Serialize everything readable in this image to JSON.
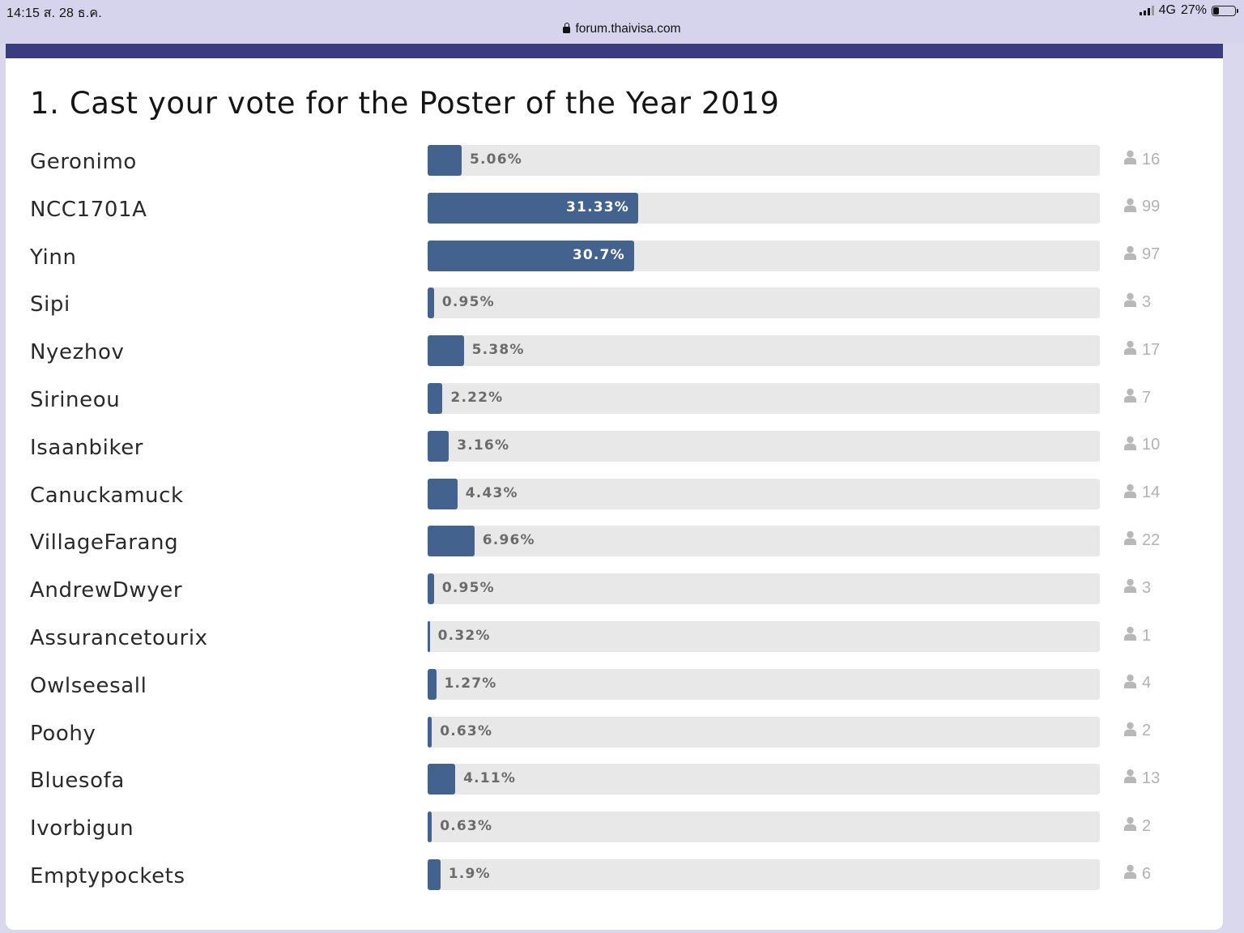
{
  "status_bar": {
    "time_date": "14:15  ส. 28 ธ.ค.",
    "network": "4G",
    "battery": "27%",
    "battery_fraction": 0.27,
    "url": "forum.thaivisa.com"
  },
  "poll": {
    "title": "1. Cast your vote for the Poster of the Year 2019",
    "options": [
      {
        "name": "Geronimo",
        "percent_label": "5.06%",
        "percent": 5.06,
        "votes": "16"
      },
      {
        "name": "NCC1701A",
        "percent_label": "31.33%",
        "percent": 31.33,
        "votes": "99"
      },
      {
        "name": "Yinn",
        "percent_label": "30.7%",
        "percent": 30.7,
        "votes": "97"
      },
      {
        "name": "Sipi",
        "percent_label": "0.95%",
        "percent": 0.95,
        "votes": "3"
      },
      {
        "name": "Nyezhov",
        "percent_label": "5.38%",
        "percent": 5.38,
        "votes": "17"
      },
      {
        "name": "Sirineou",
        "percent_label": "2.22%",
        "percent": 2.22,
        "votes": "7"
      },
      {
        "name": "Isaanbiker",
        "percent_label": "3.16%",
        "percent": 3.16,
        "votes": "10"
      },
      {
        "name": "Canuckamuck",
        "percent_label": "4.43%",
        "percent": 4.43,
        "votes": "14"
      },
      {
        "name": "VillageFarang",
        "percent_label": "6.96%",
        "percent": 6.96,
        "votes": "22"
      },
      {
        "name": "AndrewDwyer",
        "percent_label": "0.95%",
        "percent": 0.95,
        "votes": "3"
      },
      {
        "name": "Assurancetourix",
        "percent_label": "0.32%",
        "percent": 0.32,
        "votes": "1"
      },
      {
        "name": "Owlseesall",
        "percent_label": "1.27%",
        "percent": 1.27,
        "votes": "4"
      },
      {
        "name": "Poohy",
        "percent_label": "0.63%",
        "percent": 0.63,
        "votes": "2"
      },
      {
        "name": "Bluesofa",
        "percent_label": "4.11%",
        "percent": 4.11,
        "votes": "13"
      },
      {
        "name": "Ivorbigun",
        "percent_label": "0.63%",
        "percent": 0.63,
        "votes": "2"
      },
      {
        "name": "Emptypockets",
        "percent_label": "1.9%",
        "percent": 1.9,
        "votes": "6"
      }
    ]
  }
}
